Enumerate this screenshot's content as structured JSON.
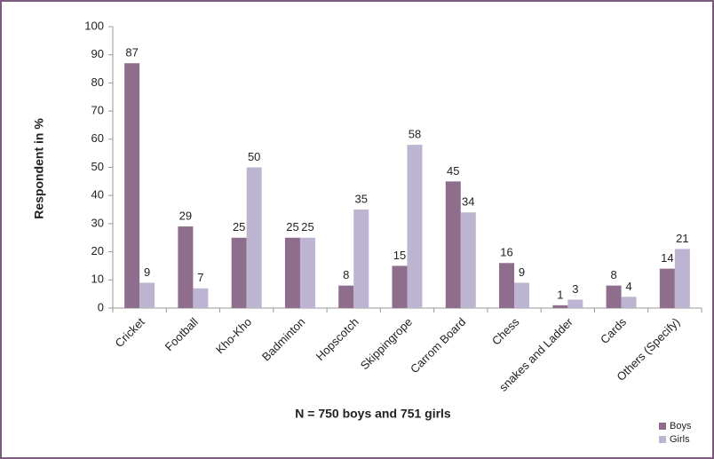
{
  "chart_data": {
    "type": "bar",
    "x_label": "N = 750 boys and 751 girls",
    "y_label": "Respondent in %",
    "categories": [
      "Cricket",
      "Football",
      "Kho-Kho",
      "Badminton",
      "Hopscotch",
      "Skippingrope",
      "Carrom Board",
      "Chess",
      "snakes and Ladder",
      "Cards",
      "Others (Specify)"
    ],
    "series": [
      {
        "name": "Boys",
        "color": "#8e6d8d",
        "values": [
          87,
          29,
          25,
          25,
          8,
          15,
          45,
          16,
          1,
          8,
          14
        ]
      },
      {
        "name": "Girls",
        "color": "#bdb4d2",
        "values": [
          9,
          7,
          50,
          25,
          35,
          58,
          34,
          9,
          3,
          4,
          21
        ]
      }
    ],
    "ylim": [
      0,
      100
    ],
    "yticks": [
      0,
      10,
      20,
      30,
      40,
      50,
      60,
      70,
      80,
      90,
      100
    ],
    "grid": false,
    "legend": "bottom-right"
  }
}
